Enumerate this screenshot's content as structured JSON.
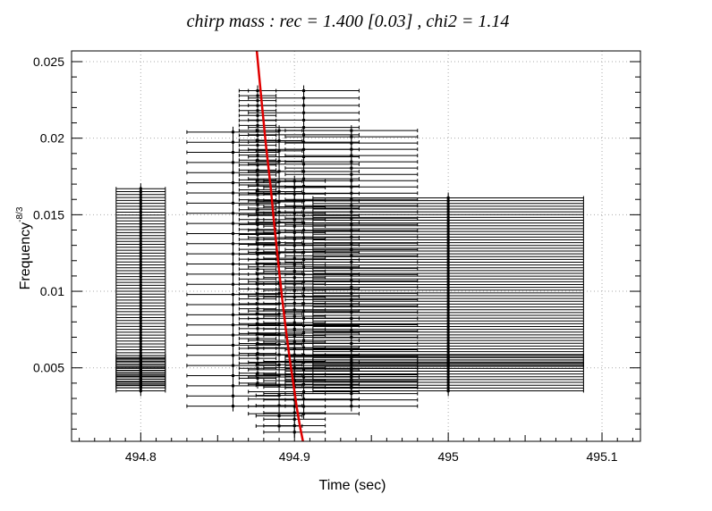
{
  "chart_data": {
    "type": "scatter",
    "title": "chirp mass : rec = 1.400 [0.03] , chi2 = 1.14",
    "xlabel": "Time (sec)",
    "ylabel": "Frequency",
    "ylabel_exponent": "-8/3",
    "xlim": [
      494.755,
      495.125
    ],
    "ylim": [
      0.0002,
      0.0257
    ],
    "x_ticks": [
      494.8,
      494.9,
      495,
      495.1
    ],
    "x_tick_labels": [
      "494.8",
      "494.9",
      "495",
      "495.1"
    ],
    "y_ticks": [
      0.005,
      0.01,
      0.015,
      0.02,
      0.025
    ],
    "y_tick_labels": [
      "0.005",
      "0.01",
      "0.015",
      "0.02",
      "0.025"
    ],
    "grid": true,
    "grid_style": "dotted",
    "series": [
      {
        "kind": "error_bars",
        "color": "#000000",
        "groups": [
          {
            "x": 494.8,
            "xerr": 0.016,
            "y_range": [
              0.0035,
              0.0167
            ],
            "count": 70
          },
          {
            "x": 494.8,
            "xerr": 0.016,
            "y_range": [
              0.0037,
              0.0058
            ],
            "count": 16
          },
          {
            "x": 494.86,
            "xerr": 0.03,
            "y_range": [
              0.0025,
              0.0204
            ],
            "count": 28
          },
          {
            "x": 494.876,
            "xerr": 0.012,
            "y_range": [
              0.004,
              0.0231
            ],
            "count": 60
          },
          {
            "x": 494.89,
            "xerr": 0.015,
            "y_range": [
              0.0012,
              0.0205
            ],
            "count": 30
          },
          {
            "x": 494.9,
            "xerr": 0.02,
            "y_range": [
              0.0008,
              0.0172
            ],
            "count": 40
          },
          {
            "x": 494.906,
            "xerr": 0.036,
            "y_range": [
              0.002,
              0.0231
            ],
            "count": 45
          },
          {
            "x": 494.937,
            "xerr": 0.043,
            "y_range": [
              0.0025,
              0.0205
            ],
            "count": 45
          },
          {
            "x": 494.937,
            "xerr": 0.043,
            "y_range": [
              0.0037,
              0.0057
            ],
            "count": 12
          },
          {
            "x": 495.0,
            "xerr": 0.088,
            "y_range": [
              0.0035,
              0.0161
            ],
            "count": 70
          },
          {
            "x": 495.0,
            "xerr": 0.088,
            "y_range": [
              0.0051,
              0.0058
            ],
            "count": 6
          }
        ]
      },
      {
        "kind": "line",
        "name": "",
        "color": "#e00000",
        "x": [
          494.8755,
          494.8785,
          494.8815,
          494.8845,
          494.887,
          494.8895,
          494.892,
          494.8945,
          494.897,
          494.8995,
          494.9015,
          494.9035,
          494.9055
        ],
        "y": [
          0.0257,
          0.0225,
          0.0195,
          0.0168,
          0.0142,
          0.0118,
          0.0095,
          0.0074,
          0.0055,
          0.0038,
          0.0024,
          0.0012,
          0.0002
        ]
      }
    ]
  }
}
